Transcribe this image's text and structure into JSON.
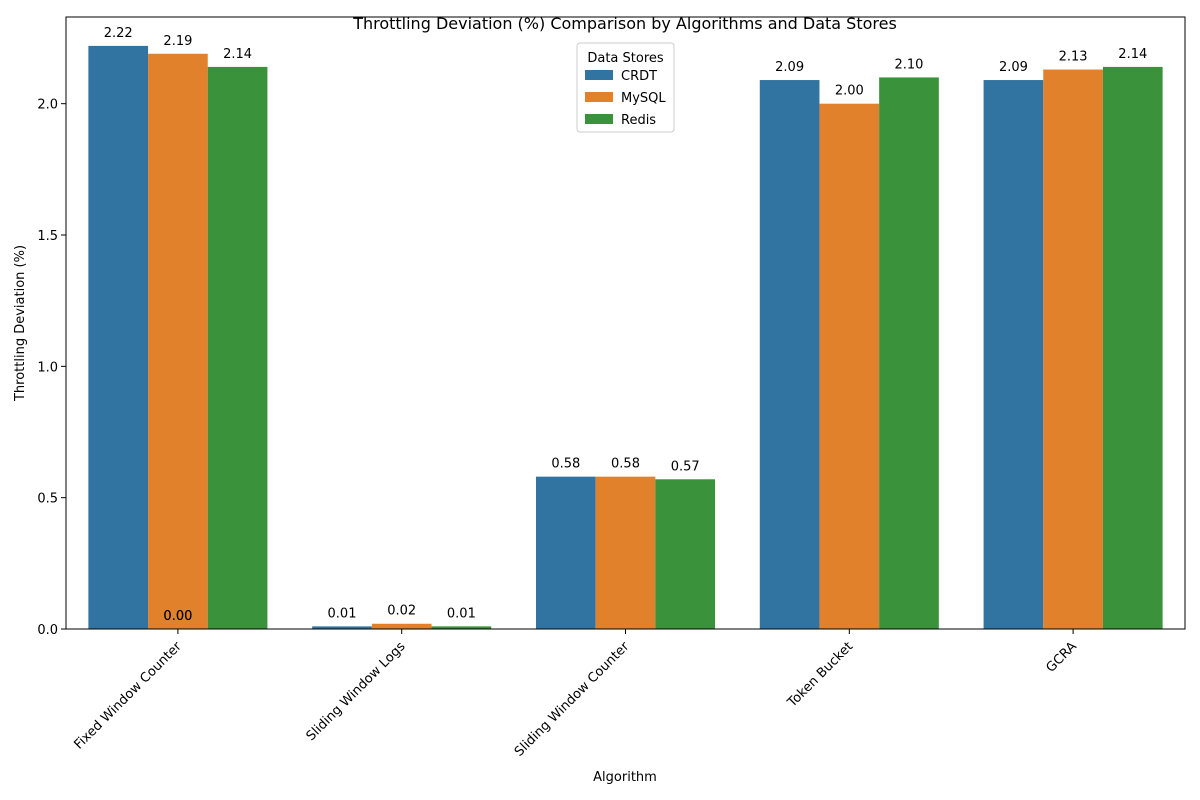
{
  "chart_data": {
    "type": "bar",
    "title": "Throttling Deviation (%) Comparison by Algorithms and Data Stores",
    "xlabel": "Algorithm",
    "ylabel": "Throttling Deviation (%)",
    "categories": [
      "Fixed Window Counter",
      "Sliding Window Logs",
      "Sliding Window Counter",
      "Token Bucket",
      "GCRA"
    ],
    "series": [
      {
        "name": "CRDT",
        "color": "#3274a1",
        "values": [
          2.22,
          0.01,
          0.58,
          2.09,
          2.09
        ]
      },
      {
        "name": "MySQL",
        "color": "#e1812c",
        "values": [
          2.19,
          0.02,
          0.58,
          2.0,
          2.13
        ]
      },
      {
        "name": "Redis",
        "color": "#3a923a",
        "values": [
          2.14,
          0.01,
          0.57,
          2.1,
          2.14
        ]
      }
    ],
    "extra_labels": [
      {
        "category": "Fixed Window Counter",
        "text": "0.00"
      },
      {
        "category": "Fixed Window Counter",
        "text": "0.00"
      }
    ],
    "ylim": [
      0,
      2.33
    ],
    "yticks": [
      0.0,
      0.5,
      1.0,
      1.5,
      2.0
    ],
    "ytick_labels": [
      "0.0",
      "0.5",
      "1.0",
      "1.5",
      "2.0"
    ],
    "legend": {
      "title": "Data Stores",
      "placement": "top-center"
    },
    "grid": false
  }
}
